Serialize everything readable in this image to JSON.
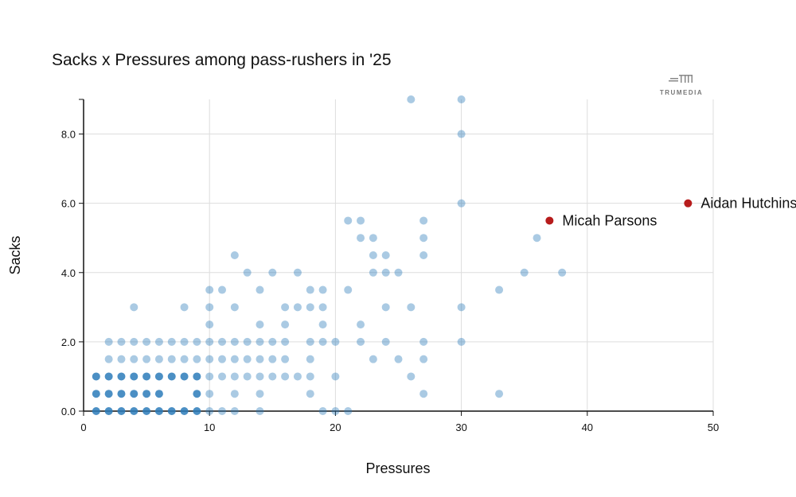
{
  "chart_data": {
    "type": "scatter",
    "title": "Sacks x Pressures among pass-rushers in '25",
    "xlabel": "Pressures",
    "ylabel": "Sacks",
    "xlim": [
      0,
      50
    ],
    "ylim": [
      0,
      9
    ],
    "xticks": [
      "0",
      "10",
      "20",
      "30",
      "40",
      "50"
    ],
    "yticks": [
      "0.0",
      "2.0",
      "4.0",
      "6.0",
      "8.0"
    ],
    "grid": true,
    "point_color": "#2b7bba",
    "highlight_color": "#b71c1c",
    "points_by_sacks": [
      {
        "sacks": 0,
        "pressures": [
          1,
          2,
          3,
          4,
          5,
          6,
          7,
          8,
          9,
          10,
          11,
          12,
          14,
          19,
          20,
          21
        ]
      },
      {
        "sacks": 0.5,
        "pressures": [
          1,
          2,
          3,
          4,
          5,
          6,
          9,
          10,
          12,
          14,
          18,
          27,
          33
        ]
      },
      {
        "sacks": 1,
        "pressures": [
          1,
          2,
          3,
          4,
          5,
          6,
          7,
          8,
          9,
          10,
          11,
          12,
          13,
          14,
          15,
          16,
          17,
          18,
          20,
          26
        ]
      },
      {
        "sacks": 1.5,
        "pressures": [
          2,
          3,
          4,
          5,
          6,
          7,
          8,
          9,
          10,
          11,
          12,
          13,
          14,
          15,
          16,
          18,
          23,
          25,
          27
        ]
      },
      {
        "sacks": 2,
        "pressures": [
          2,
          3,
          4,
          5,
          6,
          7,
          8,
          9,
          10,
          11,
          12,
          13,
          14,
          15,
          16,
          18,
          19,
          20,
          22,
          24,
          27,
          30
        ]
      },
      {
        "sacks": 2.5,
        "pressures": [
          10,
          14,
          16,
          19,
          22
        ]
      },
      {
        "sacks": 3,
        "pressures": [
          4,
          8,
          10,
          12,
          16,
          17,
          18,
          19,
          24,
          26,
          30
        ]
      },
      {
        "sacks": 3.5,
        "pressures": [
          10,
          11,
          14,
          18,
          19,
          21,
          33
        ]
      },
      {
        "sacks": 4,
        "pressures": [
          13,
          15,
          17,
          23,
          24,
          25,
          35,
          38
        ]
      },
      {
        "sacks": 4.5,
        "pressures": [
          12,
          23,
          24,
          27
        ]
      },
      {
        "sacks": 5,
        "pressures": [
          22,
          23,
          27,
          36
        ]
      },
      {
        "sacks": 5.5,
        "pressures": [
          21,
          22,
          27
        ]
      },
      {
        "sacks": 6,
        "pressures": [
          30
        ]
      },
      {
        "sacks": 8,
        "pressures": [
          30
        ]
      },
      {
        "sacks": 9,
        "pressures": [
          26,
          30
        ]
      }
    ],
    "highlighted": [
      {
        "name": "Micah Parsons",
        "pressures": 37,
        "sacks": 5.5
      },
      {
        "name": "Aidan Hutchinson",
        "pressures": 48,
        "sacks": 6
      }
    ]
  },
  "logo": {
    "text": "TRUMEDIA"
  }
}
